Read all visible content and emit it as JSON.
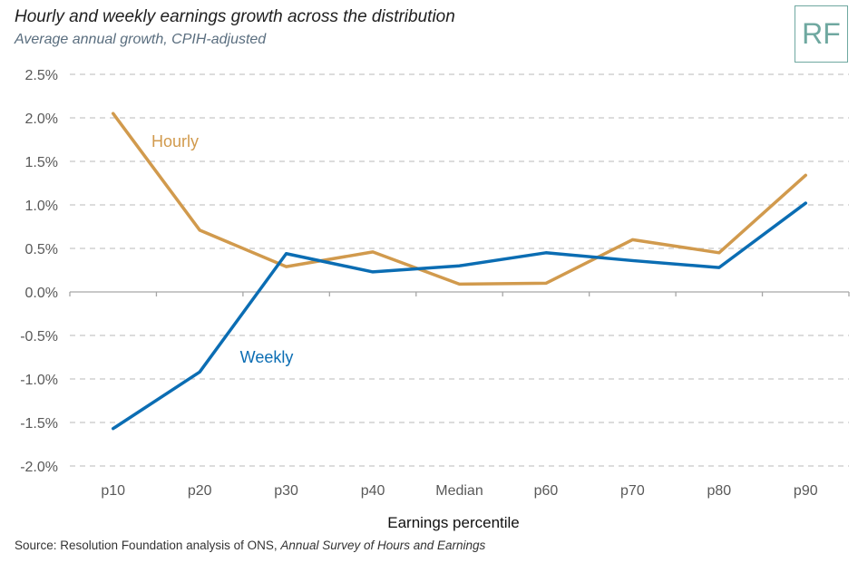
{
  "header": {
    "title": "Hourly and weekly earnings growth across the distribution",
    "subtitle": "Average annual growth, CPIH-adjusted"
  },
  "logo": {
    "text": "RF"
  },
  "footer": {
    "source_prefix": "Source: Resolution Foundation analysis of ONS, ",
    "source_title": "Annual Survey of Hours and Earnings"
  },
  "chart_data": {
    "type": "line",
    "xlabel": "Earnings percentile",
    "ylabel": "",
    "categories": [
      "p10",
      "p20",
      "p30",
      "p40",
      "Median",
      "p60",
      "p70",
      "p80",
      "p90"
    ],
    "ylim": [
      -2.0,
      2.5
    ],
    "yticks": [
      2.5,
      2.0,
      1.5,
      1.0,
      0.5,
      0.0,
      -0.5,
      -1.0,
      -1.5,
      -2.0
    ],
    "ytick_labels": [
      "2.5%",
      "2.0%",
      "1.5%",
      "1.0%",
      "0.5%",
      "0.0%",
      "-0.5%",
      "-1.0%",
      "-1.5%",
      "-2.0%"
    ],
    "grid": true,
    "series": [
      {
        "name": "Hourly",
        "color": "#d19a4d",
        "values": [
          2.05,
          0.71,
          0.29,
          0.46,
          0.09,
          0.1,
          0.6,
          0.45,
          1.34
        ]
      },
      {
        "name": "Weekly",
        "color": "#0b6db3",
        "values": [
          -1.57,
          -0.92,
          0.44,
          0.23,
          0.3,
          0.45,
          0.36,
          0.28,
          1.02
        ]
      }
    ]
  }
}
